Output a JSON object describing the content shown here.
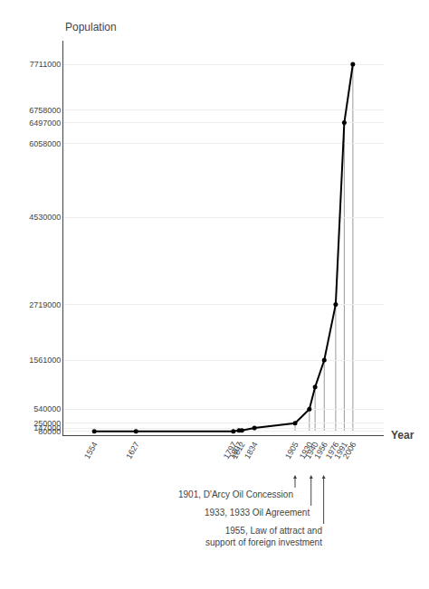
{
  "chart_data": {
    "type": "line",
    "x": [
      1554,
      1627,
      1797,
      1807,
      1812,
      1834,
      1905,
      1930,
      1940,
      1956,
      1976,
      1991,
      2006
    ],
    "values": [
      80000,
      80000,
      80000,
      100000,
      100000,
      150000,
      250000,
      540000,
      1000000,
      1561000,
      2719000,
      6497000,
      7711000
    ],
    "color": "#000000",
    "marker": "circle",
    "xlim": [
      1500,
      2060
    ],
    "ylim": [
      0,
      8200000
    ],
    "xticks": [
      1554,
      1627,
      1797,
      1807,
      1812,
      1834,
      1905,
      1930,
      1940,
      1956,
      1976,
      1991,
      2006
    ],
    "yticks": [
      80000,
      147000,
      250000,
      540000,
      1561000,
      2719000,
      4530000,
      6058000,
      6497000,
      6758000,
      7711000
    ],
    "grid": true,
    "xlabel": "Year",
    "ylabel": "Population",
    "annotations": [
      {
        "x": 1905,
        "text": "1901, D'Arcy Oil Concession"
      },
      {
        "x": 1933,
        "text": "1933, 1933 Oil Agreement"
      },
      {
        "x": 1955,
        "text": "1955, Law of attract and\nsupport of foreign investment"
      }
    ],
    "drop_lines": {
      "from": 80000,
      "color": "#999999"
    }
  }
}
